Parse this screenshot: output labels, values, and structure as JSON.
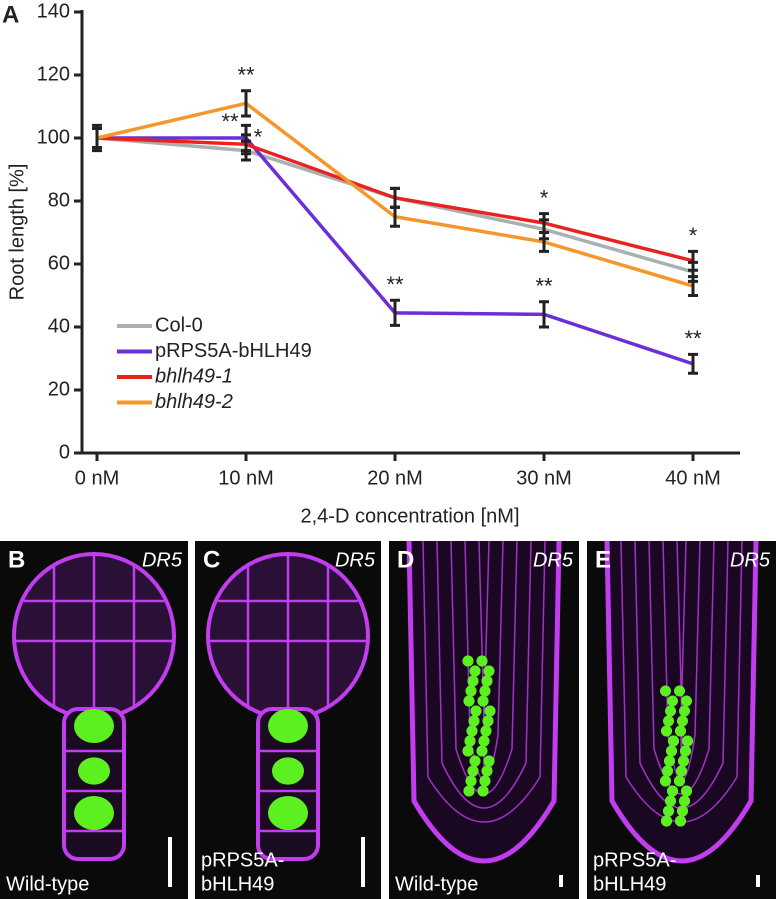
{
  "chart_data": {
    "type": "line",
    "panel_label": "A",
    "y_label": "Root length [%]",
    "x_label": "2,4-D concentration [nM]",
    "categories": [
      "0 nM",
      "10 nM",
      "20 nM",
      "30 nM",
      "40 nM"
    ],
    "ylim": [
      0,
      140
    ],
    "yticks": [
      0,
      20,
      40,
      60,
      80,
      100,
      120,
      140
    ],
    "legend": "lower-left",
    "series": [
      {
        "name": "Col-0",
        "color": "#a9b0b0",
        "values": [
          100,
          96,
          81,
          71,
          57.5
        ],
        "errors": [
          3,
          3,
          3,
          3,
          3
        ],
        "significance": [
          null,
          null,
          null,
          null,
          null
        ]
      },
      {
        "name": "pRPS5A-bHLH49",
        "color": "#6a2fd6",
        "values": [
          100,
          100,
          44.5,
          44,
          28.3
        ],
        "errors": [
          4,
          4,
          4,
          4,
          3
        ],
        "significance": [
          null,
          "**",
          "**",
          "**",
          "**"
        ]
      },
      {
        "name": "bhlh49-1",
        "color": "#e8231f",
        "italic": true,
        "values": [
          100,
          98,
          81,
          73,
          61
        ],
        "errors": [
          3,
          3,
          3,
          3,
          3
        ],
        "significance": [
          null,
          "*",
          null,
          "*",
          "*"
        ]
      },
      {
        "name": "bhlh49-2",
        "color": "#f5962a",
        "italic": true,
        "values": [
          100,
          111,
          75,
          67,
          53
        ],
        "errors": [
          3,
          4,
          3,
          3,
          3
        ],
        "significance": [
          null,
          "**",
          null,
          null,
          null
        ]
      }
    ]
  },
  "panels": [
    {
      "label": "B",
      "marker": "DR5",
      "caption": [
        "Wild-type"
      ],
      "kind": "embryo"
    },
    {
      "label": "C",
      "marker": "DR5",
      "caption": [
        "pRPS5A-",
        "bHLH49"
      ],
      "kind": "embryo"
    },
    {
      "label": "D",
      "marker": "DR5",
      "caption": [
        "Wild-type"
      ],
      "kind": "root"
    },
    {
      "label": "E",
      "marker": "DR5",
      "caption": [
        "pRPS5A-",
        "bHLH49"
      ],
      "kind": "root"
    }
  ]
}
